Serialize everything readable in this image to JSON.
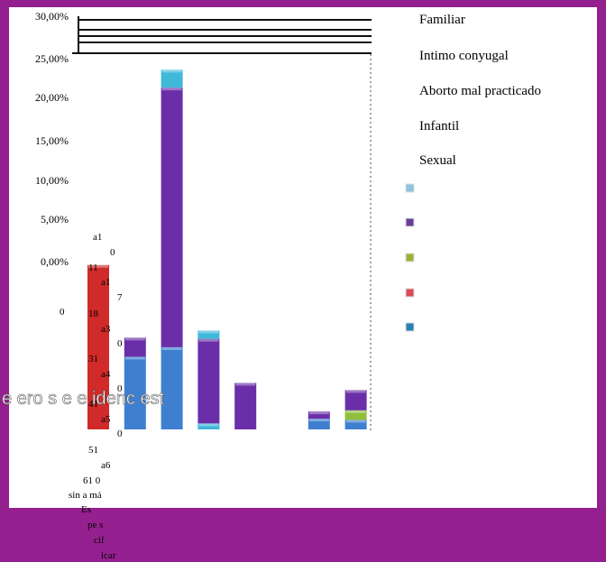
{
  "chart_data": {
    "type": "bar",
    "stacked": true,
    "y_tick_labels": [
      "30,00%",
      "25,00%",
      "20,00%",
      "15,00%",
      "10,00%",
      "5,00%",
      "0,00%"
    ],
    "ylim": [
      0,
      30
    ],
    "legend_position": "right",
    "legend_labels": [
      "Familiar",
      "Intimo conyugal",
      "Aborto mal practicado",
      "Infantil",
      "Sexual"
    ],
    "legend_colors": [
      "#8fc3de",
      "#6a3d9a",
      "#9ab23a",
      "#d94a5a",
      "#2a7fb0"
    ],
    "series_colors": {
      "red": "#d02a2a",
      "blue": "#3f7fd0",
      "purple": "#6a2fa8",
      "cyan": "#40b8d8",
      "lavender": "#c7a3e6",
      "green": "#8fbf3a"
    },
    "stacks": [
      [
        {
          "color": "red",
          "value": 13.8
        }
      ],
      [
        {
          "color": "blue",
          "value": 6.1
        },
        {
          "color": "purple",
          "value": 1.6
        }
      ],
      [
        {
          "color": "blue",
          "value": 6.9
        },
        {
          "color": "purple",
          "value": 21.8
        },
        {
          "color": "cyan",
          "value": 1.5
        }
      ],
      [
        {
          "color": "cyan",
          "value": 0.5
        },
        {
          "color": "purple",
          "value": 7.1
        },
        {
          "color": "cyan",
          "value": 0.7
        }
      ],
      [
        {
          "color": "purple",
          "value": 3.9
        }
      ],
      [],
      [
        {
          "color": "blue",
          "value": 0.9
        },
        {
          "color": "purple",
          "value": 0.6
        }
      ],
      [
        {
          "color": "blue",
          "value": 0.8
        },
        {
          "color": "green",
          "value": 0.8
        },
        {
          "color": "purple",
          "value": 1.7
        }
      ]
    ],
    "category_label_fragments": [
      "a1",
      "0",
      "11",
      "a1",
      "7",
      "0",
      "18",
      "a3",
      "0",
      "31",
      "a4",
      "0",
      "41",
      "a5",
      "0",
      "51",
      "a6",
      "61 0",
      "sin a má",
      "Es",
      "pe s",
      "cif",
      "icar"
    ],
    "overlay_text": "e ero s e e idenc est"
  }
}
